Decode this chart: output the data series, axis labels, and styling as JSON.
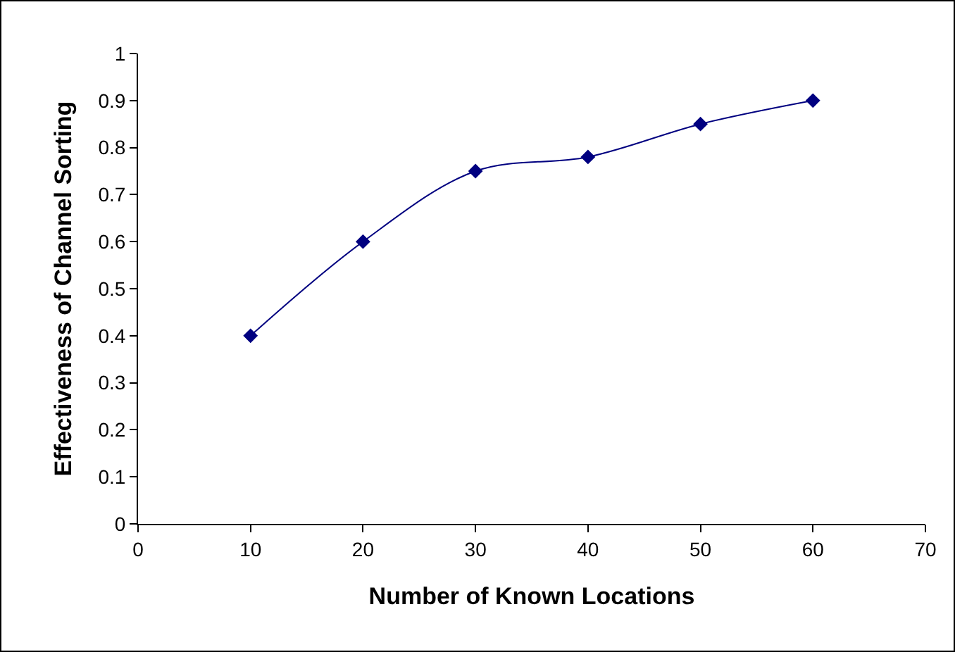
{
  "chart_data": {
    "type": "line",
    "xlabel": "Number of Known Locations",
    "ylabel": "Effectiveness of Channel Sorting",
    "x": [
      10,
      20,
      30,
      40,
      50,
      60
    ],
    "series": [
      {
        "color": "#000080",
        "values": [
          0.4,
          0.6,
          0.75,
          0.78,
          0.85,
          0.9
        ]
      }
    ],
    "xlim": [
      0,
      70
    ],
    "xticks": [
      0,
      10,
      20,
      30,
      40,
      50,
      60,
      70
    ],
    "ylim": [
      0,
      1
    ],
    "yticks": [
      0,
      0.1,
      0.2,
      0.3,
      0.4,
      0.5,
      0.6,
      0.7,
      0.8,
      0.9,
      1
    ],
    "grid": false,
    "legend": false,
    "marker": "diamond",
    "line_style": "solid"
  }
}
